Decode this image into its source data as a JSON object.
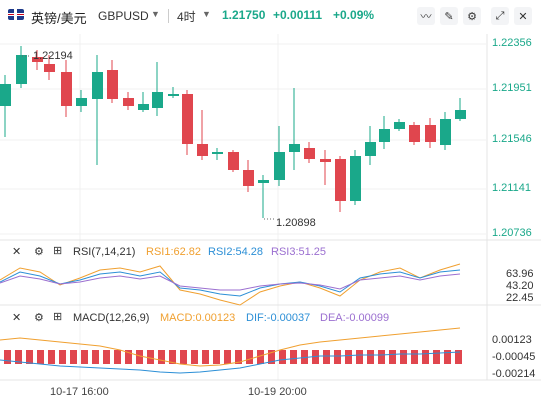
{
  "header": {
    "pair_name": "英镑/美元",
    "symbol": "GBPUSD",
    "period": "4时",
    "last_price": "1.21750",
    "change": "+0.00111",
    "change_pct": "+0.09%",
    "icons": [
      "line-chart-icon",
      "pencil-icon",
      "settings-icon",
      "expand-icon",
      "close-icon"
    ]
  },
  "main_chart": {
    "price_axis": [
      "1.22356",
      "1.21951",
      "1.21546",
      "1.21141",
      "1.20736"
    ],
    "high_label": "1.22194",
    "low_label": "1.20898",
    "up_color": "#1aa88a",
    "down_color": "#e0464e"
  },
  "rsi": {
    "label": "RSI(7,14,21)",
    "rsi1": "RSI1:62.82",
    "rsi2": "RSI2:54.28",
    "rsi3": "RSI3:51.25",
    "axis": [
      "63.96",
      "43.20",
      "22.45"
    ],
    "colors": {
      "rsi1": "#f0a030",
      "rsi2": "#2c8fd6",
      "rsi3": "#9b6fd0"
    }
  },
  "macd": {
    "label": "MACD(12,26,9)",
    "macd": "MACD:0.00123",
    "dif": "DIF:-0.00037",
    "dea": "DEA:-0.00099",
    "axis": [
      "0.00123",
      "-0.00045",
      "-0.00214"
    ],
    "colors": {
      "macd": "#f0a030",
      "dif": "#2c8fd6",
      "dea": "#9b6fd0"
    }
  },
  "x_axis": [
    "10-17 16:00",
    "10-19 20:00"
  ]
}
